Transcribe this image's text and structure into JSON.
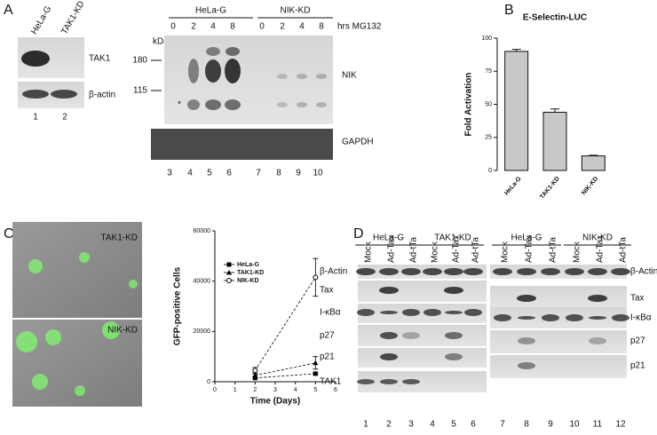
{
  "panel_labels": [
    "A",
    "B",
    "C",
    "D"
  ],
  "panel_a": {
    "left_blot": {
      "lanes": [
        "HeLa-G",
        "TAK1-KD"
      ],
      "rows": [
        "TAK1",
        "β-actin"
      ],
      "lane_numbers": [
        1,
        2
      ]
    },
    "right_blot": {
      "groups": [
        "HeLa-G",
        "NIK-KD"
      ],
      "treatment": "hrs MG132",
      "times": [
        0,
        2,
        4,
        8,
        0,
        2,
        4,
        8
      ],
      "marker_unit": "kDa",
      "markers": [
        180,
        115
      ],
      "asterisk": "*",
      "rows": [
        "NIK",
        "GAPDH"
      ],
      "lane_numbers": [
        3,
        4,
        5,
        6,
        7,
        8,
        9,
        10
      ]
    }
  },
  "panel_c": {
    "image_labels": [
      "TAK1-KD",
      "NIK-KD"
    ]
  },
  "panel_d": {
    "groups": [
      "HeLa-G",
      "TAK1-KD",
      "HeLa-G",
      "NIK-KD"
    ],
    "lanes": [
      "Mock",
      "Ad-Tax",
      "Ad-tTa",
      "Mock",
      "Ad-Tax",
      "Ad-tTa",
      "Mock",
      "Ad-Tax",
      "Ad-tTa",
      "Mock",
      "Ad-Tax",
      "Ad-tTa"
    ],
    "left_rows": [
      "β-Actin",
      "Tax",
      "I-κBα",
      "p27",
      "p21",
      "TAK1"
    ],
    "right_rows": [
      "β-Actin",
      "Tax",
      "I-κBα",
      "p27",
      "p21"
    ],
    "lane_numbers": [
      1,
      2,
      3,
      4,
      5,
      6,
      7,
      8,
      9,
      10,
      11,
      12
    ]
  },
  "chart_data": [
    {
      "type": "bar",
      "title": "E-Selectin-LUC",
      "y_label": "Fold Activation",
      "categories": [
        "HeLa-G",
        "TAK1-KD",
        "NIK-KD"
      ],
      "values": [
        90,
        44,
        11
      ],
      "errors": [
        1.5,
        2.5,
        0.5
      ],
      "color": "#c8c8c8",
      "ylim": [
        0,
        100
      ],
      "yticks": [
        0,
        25,
        50,
        75,
        100
      ]
    },
    {
      "type": "line",
      "x_label": "Time (Days)",
      "y_label": "GFP-positive Cells",
      "x": [
        2,
        5
      ],
      "xlim": [
        0,
        6
      ],
      "xticks": [
        0,
        1,
        2,
        3,
        4,
        5,
        6
      ],
      "ylim": [
        0,
        60000
      ],
      "yticks": [
        0,
        20000,
        40000,
        60000
      ],
      "legend": "upper-left",
      "series": [
        {
          "name": "HeLa-G",
          "color": "#000000",
          "marker": "square",
          "values": [
            1500,
            3200
          ],
          "errors": [
            300,
            400
          ]
        },
        {
          "name": "TAK1-KD",
          "color": "#000000",
          "marker": "triangle",
          "values": [
            2500,
            7500
          ],
          "errors": [
            600,
            2500
          ]
        },
        {
          "name": "NIK-KD",
          "color": "#000000",
          "marker": "circle-open",
          "values": [
            4500,
            41500
          ],
          "errors": [
            1200,
            7500
          ]
        }
      ]
    }
  ]
}
